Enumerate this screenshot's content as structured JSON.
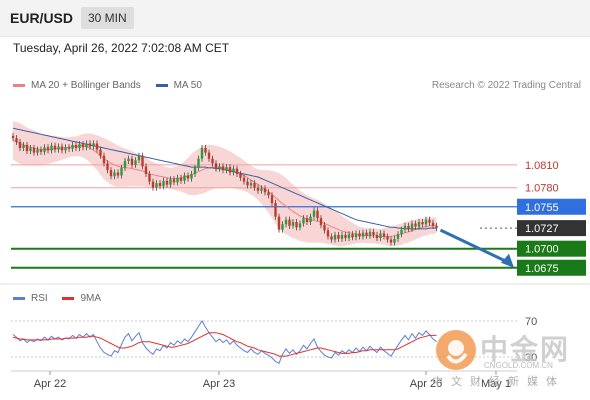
{
  "header": {
    "pair": "EUR/USD",
    "timeframe": "30 MIN"
  },
  "date_line": "Tuesday, April 26, 2022 7:02:08 AM CET",
  "legend": {
    "ma20_label": "MA 20 + Bollinger Bands",
    "ma50_label": "MA 50",
    "ma20_color": "#f08080",
    "ma50_color": "#3a5fa0"
  },
  "copyright": "Research © 2022 Trading Central",
  "rsi_legend": {
    "rsi_label": "RSI",
    "ma9_label": "9MA",
    "rsi_color": "#5b7fd6",
    "ma9_color": "#e03030"
  },
  "watermark": {
    "cn": "中金网",
    "en": "CNGOLD.COM.CN",
    "sub": "中文财经新媒体"
  },
  "colors": {
    "up": "#2e9b3a",
    "down": "#c0392b",
    "resistance_line": "#f2a0a0",
    "pivot": "#2f6fde",
    "support": "#1a7a1a",
    "current": "#333333",
    "arrow": "#2f6fb3",
    "band_fill": "#f6c8c8"
  },
  "chart_data": [
    {
      "type": "candlestick",
      "title": "EUR/USD 30 MIN",
      "x_labels": [
        "Apr 22",
        "Apr 23",
        "Apr 26",
        "May 1"
      ],
      "ylim": [
        1.0655,
        1.0895
      ],
      "levels": [
        {
          "label": "1.0810",
          "value": 1.081,
          "kind": "resistance"
        },
        {
          "label": "1.0780",
          "value": 1.078,
          "kind": "resistance"
        },
        {
          "label": "1.0755",
          "value": 1.0755,
          "kind": "pivot"
        },
        {
          "label": "1.0727",
          "value": 1.0727,
          "kind": "current"
        },
        {
          "label": "1.0700",
          "value": 1.07,
          "kind": "support"
        },
        {
          "label": "1.0675",
          "value": 1.0675,
          "kind": "support"
        }
      ],
      "close": [
        1.0845,
        1.084,
        1.0832,
        1.0836,
        1.0828,
        1.0832,
        1.0826,
        1.083,
        1.0827,
        1.0833,
        1.0829,
        1.0835,
        1.083,
        1.0834,
        1.0829,
        1.0833,
        1.0831,
        1.0836,
        1.0832,
        1.0837,
        1.0833,
        1.0838,
        1.0834,
        1.0838,
        1.083,
        1.0822,
        1.0812,
        1.0803,
        1.0795,
        1.08,
        1.0796,
        1.0806,
        1.0815,
        1.0818,
        1.081,
        1.0816,
        1.0822,
        1.0808,
        1.0798,
        1.0788,
        1.078,
        1.0786,
        1.0782,
        1.0789,
        1.0784,
        1.0791,
        1.0787,
        1.0793,
        1.0789,
        1.0796,
        1.0792,
        1.0798,
        1.0806,
        1.0818,
        1.0832,
        1.0826,
        1.0818,
        1.0812,
        1.0805,
        1.0808,
        1.0803,
        1.0807,
        1.08,
        1.0805,
        1.0798,
        1.0793,
        1.0788,
        1.0783,
        1.0786,
        1.078,
        1.0776,
        1.0779,
        1.0774,
        1.077,
        1.076,
        1.0742,
        1.0725,
        1.0732,
        1.0738,
        1.073,
        1.0735,
        1.0728,
        1.0733,
        1.074,
        1.0735,
        1.0742,
        1.075,
        1.074,
        1.0731,
        1.0724,
        1.0716,
        1.0712,
        1.0718,
        1.0713,
        1.0718,
        1.0714,
        1.0719,
        1.0715,
        1.072,
        1.0716,
        1.0721,
        1.0717,
        1.0722,
        1.0718,
        1.0714,
        1.072,
        1.0716,
        1.0712,
        1.0708,
        1.0713,
        1.0719,
        1.0725,
        1.073,
        1.0726,
        1.0733,
        1.0729,
        1.0735,
        1.0732,
        1.0738,
        1.0734,
        1.073,
        1.0727
      ],
      "ma20": [
        1.0842,
        1.084,
        1.0838,
        1.0836,
        1.0834,
        1.0833,
        1.0832,
        1.0831,
        1.083,
        1.083,
        1.083,
        1.083,
        1.0831,
        1.0831,
        1.0832,
        1.0832,
        1.0833,
        1.0834,
        1.0834,
        1.0835,
        1.0835,
        1.0834,
        1.0832,
        1.0829,
        1.0826,
        1.0822,
        1.0818,
        1.0815,
        1.0812,
        1.081,
        1.0808,
        1.0807,
        1.0806,
        1.0806,
        1.0805,
        1.0804,
        1.0803,
        1.0802,
        1.08,
        1.0798,
        1.0797,
        1.0796,
        1.0795,
        1.0794,
        1.0793,
        1.0792,
        1.0792,
        1.0792,
        1.0793,
        1.0794,
        1.0795,
        1.0797,
        1.0799,
        1.0801,
        1.0803,
        1.0805,
        1.0806,
        1.0807,
        1.0807,
        1.0807,
        1.0806,
        1.0805,
        1.0804,
        1.0802,
        1.08,
        1.0798,
        1.0796,
        1.0793,
        1.079,
        1.0787,
        1.0784,
        1.0781,
        1.0778,
        1.0775,
        1.0771,
        1.0767,
        1.0763,
        1.0759,
        1.0756,
        1.0752,
        1.0749,
        1.0746,
        1.0743,
        1.0741,
        1.0739,
        1.0738,
        1.0737,
        1.0736,
        1.0735,
        1.0733,
        1.0731,
        1.0729,
        1.0727,
        1.0725,
        1.0723,
        1.0722,
        1.0721,
        1.072,
        1.0719,
        1.0718,
        1.0718,
        1.0717,
        1.0717,
        1.0717,
        1.0716,
        1.0716,
        1.0716,
        1.0716,
        1.0716,
        1.0717,
        1.0718,
        1.0719,
        1.0721,
        1.0722,
        1.0724,
        1.0725,
        1.0727,
        1.0728,
        1.0729,
        1.073,
        1.073,
        1.0731
      ],
      "ma50": [
        1.0858,
        1.0857,
        1.0856,
        1.0855,
        1.0854,
        1.0853,
        1.0852,
        1.0851,
        1.085,
        1.0849,
        1.0848,
        1.0847,
        1.0846,
        1.0845,
        1.0844,
        1.0843,
        1.0842,
        1.0841,
        1.084,
        1.0839,
        1.0838,
        1.0837,
        1.0836,
        1.0835,
        1.0834,
        1.0833,
        1.0832,
        1.0831,
        1.083,
        1.0829,
        1.0828,
        1.0827,
        1.0826,
        1.0825,
        1.0824,
        1.0823,
        1.0822,
        1.0821,
        1.082,
        1.0819,
        1.0818,
        1.0817,
        1.0816,
        1.0815,
        1.0814,
        1.0813,
        1.0812,
        1.0811,
        1.081,
        1.0809,
        1.0808,
        1.0807,
        1.0807,
        1.0807,
        1.0807,
        1.0807,
        1.0806,
        1.0806,
        1.0805,
        1.0805,
        1.0804,
        1.0803,
        1.0802,
        1.0801,
        1.08,
        1.0799,
        1.0798,
        1.0797,
        1.0796,
        1.0795,
        1.0794,
        1.0792,
        1.079,
        1.0788,
        1.0786,
        1.0784,
        1.0782,
        1.078,
        1.0778,
        1.0776,
        1.0774,
        1.0772,
        1.077,
        1.0768,
        1.0766,
        1.0764,
        1.0762,
        1.076,
        1.0758,
        1.0756,
        1.0754,
        1.0752,
        1.075,
        1.0748,
        1.0746,
        1.0744,
        1.0742,
        1.074,
        1.0738,
        1.0737,
        1.0736,
        1.0735,
        1.0734,
        1.0733,
        1.0732,
        1.0731,
        1.073,
        1.0729,
        1.0728,
        1.0728,
        1.0727,
        1.0727,
        1.0726,
        1.0726,
        1.0726,
        1.0726,
        1.0726,
        1.0726,
        1.0726,
        1.0727,
        1.0727,
        1.0727
      ],
      "band_halfwidth": [
        0.0025,
        0.0026,
        0.0027,
        0.0026,
        0.0025,
        0.0024,
        0.0023,
        0.0022,
        0.0021,
        0.002,
        0.0019,
        0.0018,
        0.0017,
        0.0016,
        0.0015,
        0.0014,
        0.0013,
        0.0013,
        0.0013,
        0.0014,
        0.0015,
        0.0017,
        0.0019,
        0.0021,
        0.0023,
        0.0025,
        0.0027,
        0.0028,
        0.0028,
        0.0028,
        0.0027,
        0.0026,
        0.0025,
        0.0024,
        0.0023,
        0.0022,
        0.0021,
        0.002,
        0.0019,
        0.0018,
        0.0017,
        0.0016,
        0.0015,
        0.0014,
        0.0014,
        0.0014,
        0.0015,
        0.0016,
        0.0018,
        0.0021,
        0.0024,
        0.0027,
        0.0029,
        0.003,
        0.0031,
        0.0031,
        0.003,
        0.0029,
        0.0028,
        0.0027,
        0.0026,
        0.0025,
        0.0024,
        0.0023,
        0.0022,
        0.0021,
        0.002,
        0.0019,
        0.0019,
        0.0019,
        0.002,
        0.0022,
        0.0025,
        0.0028,
        0.0031,
        0.0034,
        0.0036,
        0.0037,
        0.0037,
        0.0036,
        0.0035,
        0.0034,
        0.0033,
        0.0032,
        0.0031,
        0.003,
        0.0029,
        0.0028,
        0.0027,
        0.0026,
        0.0025,
        0.0024,
        0.0023,
        0.0022,
        0.002,
        0.0018,
        0.0016,
        0.0014,
        0.0012,
        0.0011,
        0.001,
        0.001,
        0.001,
        0.001,
        0.001,
        0.001,
        0.0011,
        0.0012,
        0.0013,
        0.0013,
        0.0014,
        0.0014,
        0.0014,
        0.0014,
        0.0014,
        0.0013,
        0.0013,
        0.0012,
        0.0012,
        0.0011,
        0.0011,
        0.001
      ]
    },
    {
      "type": "line",
      "title": "RSI",
      "ylim": [
        20,
        80
      ],
      "levels": [
        {
          "label": "70",
          "value": 70
        },
        {
          "label": "30",
          "value": 30
        }
      ],
      "series": [
        {
          "name": "RSI",
          "values": [
            55,
            52,
            48,
            50,
            46,
            49,
            47,
            50,
            48,
            52,
            49,
            53,
            50,
            52,
            49,
            51,
            50,
            54,
            51,
            55,
            52,
            56,
            52,
            55,
            47,
            40,
            35,
            33,
            31,
            37,
            35,
            44,
            52,
            56,
            48,
            53,
            57,
            46,
            40,
            36,
            33,
            39,
            37,
            43,
            40,
            46,
            43,
            48,
            45,
            50,
            47,
            52,
            58,
            64,
            70,
            63,
            57,
            52,
            47,
            50,
            46,
            49,
            44,
            48,
            43,
            40,
            37,
            35,
            39,
            35,
            33,
            37,
            34,
            32,
            29,
            25,
            23,
            33,
            39,
            34,
            38,
            33,
            37,
            43,
            39,
            45,
            50,
            41,
            36,
            32,
            30,
            29,
            35,
            32,
            37,
            34,
            38,
            35,
            40,
            36,
            41,
            37,
            42,
            38,
            35,
            41,
            37,
            34,
            31,
            37,
            43,
            49,
            54,
            49,
            56,
            51,
            57,
            54,
            59,
            55,
            50,
            47
          ]
        },
        {
          "name": "9MA",
          "values": [
            52,
            51,
            50,
            50,
            49,
            49,
            49,
            49,
            49,
            49,
            49,
            50,
            50,
            50,
            50,
            51,
            51,
            51,
            51,
            52,
            52,
            52,
            53,
            53,
            52,
            51,
            49,
            47,
            45,
            43,
            41,
            40,
            40,
            41,
            42,
            44,
            46,
            47,
            47,
            47,
            46,
            45,
            44,
            43,
            42,
            41,
            41,
            42,
            43,
            44,
            45,
            47,
            49,
            51,
            53,
            55,
            57,
            57,
            57,
            56,
            55,
            53,
            51,
            49,
            47,
            46,
            44,
            42,
            41,
            40,
            38,
            37,
            36,
            35,
            34,
            33,
            31,
            31,
            31,
            32,
            33,
            34,
            35,
            36,
            37,
            38,
            39,
            40,
            40,
            39,
            38,
            37,
            36,
            35,
            34,
            34,
            34,
            35,
            35,
            36,
            37,
            37,
            38,
            38,
            38,
            38,
            38,
            38,
            38,
            38,
            39,
            41,
            43,
            45,
            47,
            49,
            51,
            52,
            53,
            54,
            54,
            54
          ]
        }
      ]
    }
  ]
}
